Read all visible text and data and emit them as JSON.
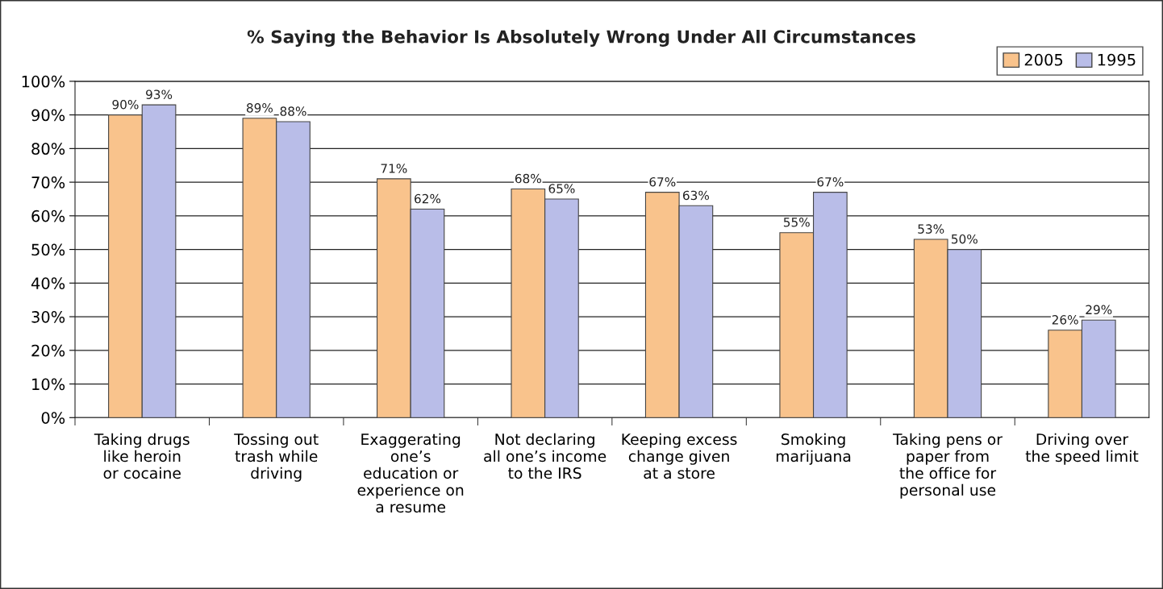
{
  "chart_data": {
    "type": "bar",
    "title": "% Saying the Behavior Is Absolutely Wrong Under All Circumstances",
    "categories": [
      "Taking drugs\nlike heroin\nor cocaine",
      "Tossing out\ntrash while\ndriving",
      "Exaggerating\none’s\neducation or\nexperience on\na resume",
      "Not declaring\nall one’s income\nto the IRS",
      "Keeping excess\nchange given\nat a store",
      "Smoking\nmarijuana",
      "Taking pens or\npaper from\nthe office for\npersonal use",
      "Driving over\nthe speed limit"
    ],
    "series": [
      {
        "name": "2005",
        "color": "#f9c38c",
        "values": [
          90,
          89,
          71,
          68,
          67,
          55,
          53,
          26
        ],
        "value_labels": [
          "90%",
          "89%",
          "71%",
          "68%",
          "67%",
          "55%",
          "53%",
          "26%"
        ]
      },
      {
        "name": "1995",
        "color": "#b9bde8",
        "values": [
          93,
          88,
          62,
          65,
          63,
          67,
          50,
          29
        ],
        "value_labels": [
          "93%",
          "88%",
          "62%",
          "65%",
          "63%",
          "67%",
          "50%",
          "29%"
        ]
      }
    ],
    "ylim": [
      0,
      100
    ],
    "yticks": [
      {
        "value": 0,
        "label": "0%"
      },
      {
        "value": 10,
        "label": "10%"
      },
      {
        "value": 20,
        "label": "20%"
      },
      {
        "value": 30,
        "label": "30%"
      },
      {
        "value": 40,
        "label": "40%"
      },
      {
        "value": 50,
        "label": "50%"
      },
      {
        "value": 60,
        "label": "60%"
      },
      {
        "value": 70,
        "label": "70%"
      },
      {
        "value": 80,
        "label": "80%"
      },
      {
        "value": 90,
        "label": "90%"
      },
      {
        "value": 100,
        "label": "100%"
      }
    ],
    "grid": "y",
    "legend": "top right"
  }
}
